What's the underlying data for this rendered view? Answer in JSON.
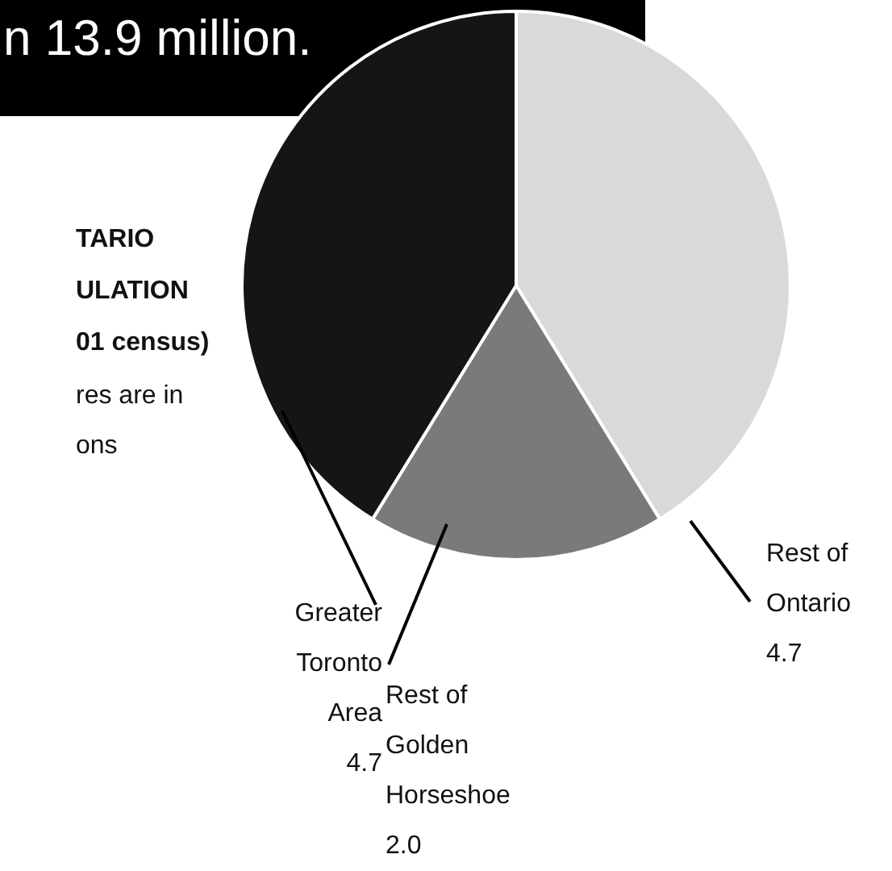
{
  "chart_data": {
    "type": "pie",
    "title": "n 13.9 million.",
    "categories": [
      "Rest of Ontario",
      "Rest of Golden Horseshoe",
      "Greater Toronto Area"
    ],
    "values": [
      4.7,
      2.0,
      4.7
    ],
    "value_labels": [
      "4.7",
      "2.0",
      "4.7"
    ],
    "colors": [
      "#d9d9d9",
      "#7a7a7a",
      "#151515"
    ],
    "annotations": [
      "TARIO",
      "ULATION",
      "01 census)",
      "res are in",
      "ons"
    ]
  }
}
